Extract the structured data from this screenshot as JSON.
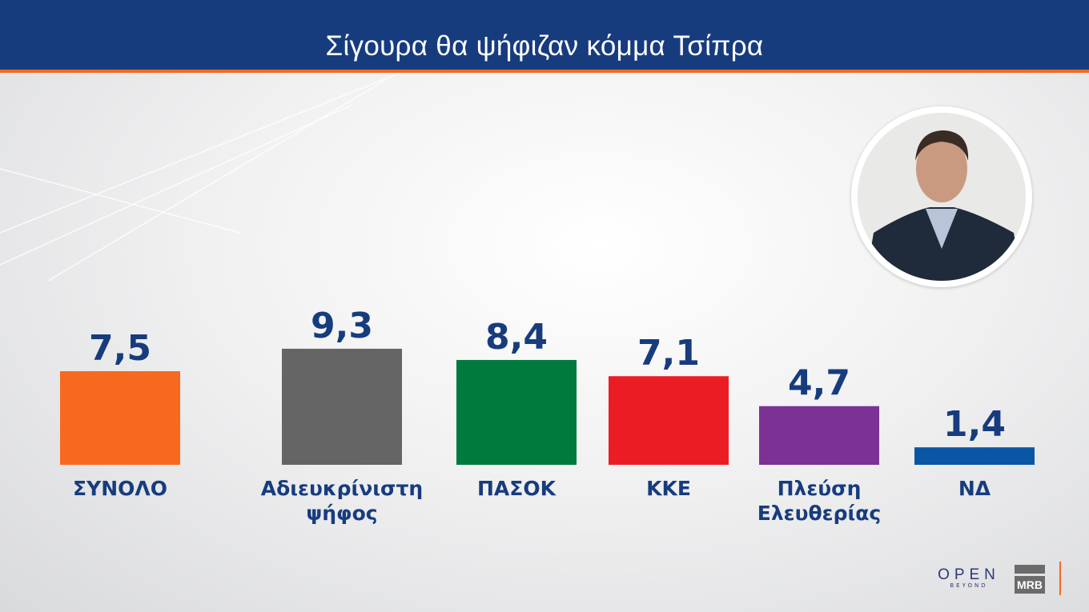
{
  "header": {
    "title": "Σίγουρα θα ψήφιζαν κόμμα Τσίπρα"
  },
  "colors": {
    "header": "#173c7e",
    "accent": "#f26a21",
    "text": "#173c7e"
  },
  "chart_data": {
    "type": "bar",
    "title": "Σίγουρα θα ψήφιζαν κόμμα Τσίπρα",
    "categories": [
      "ΣΥΝΟΛΟ",
      "Αδιευκρίνιστη ψήφος",
      "ΠΑΣΟΚ",
      "ΚΚΕ",
      "Πλεύση Ελευθερίας",
      "ΝΔ"
    ],
    "category_lines": [
      [
        "ΣΥΝΟΛΟ"
      ],
      [
        "Αδιευκρίνιστη",
        "ψήφος"
      ],
      [
        "ΠΑΣΟΚ"
      ],
      [
        "ΚΚΕ"
      ],
      [
        "Πλεύση",
        "Ελευθερίας"
      ],
      [
        "ΝΔ"
      ]
    ],
    "values": [
      7.5,
      9.3,
      8.4,
      7.1,
      4.7,
      1.4
    ],
    "value_labels": [
      "7,5",
      "9,3",
      "8,4",
      "7,1",
      "4,7",
      "1,4"
    ],
    "colors": [
      "#f7691e",
      "#656565",
      "#007a3d",
      "#ec1c24",
      "#7b3294",
      "#0a56a5"
    ],
    "grid": false,
    "legend": "none"
  },
  "logos": {
    "open": "OPEN",
    "open_sub": "BEYOND",
    "mrb": "MRB"
  },
  "photo": {
    "alt": "portrait"
  }
}
